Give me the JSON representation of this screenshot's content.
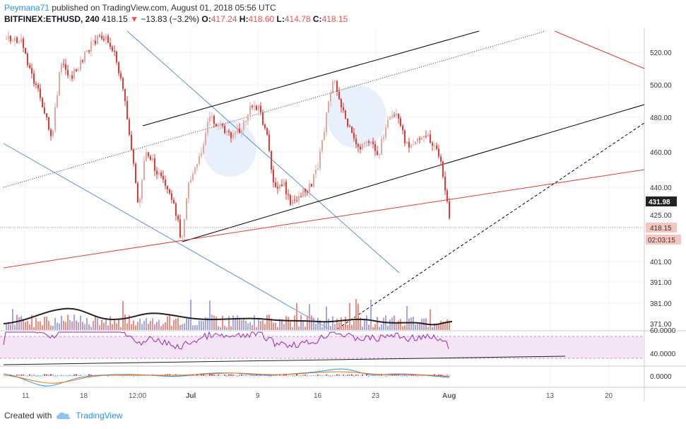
{
  "header": {
    "author": "Peymana71",
    "published_text": " published on TradingView.com, August 01, 2018 05:56 UTC",
    "symbol": "BITFINEX:ETHUSD, 240",
    "price": "418.15",
    "arrow": "▼",
    "change": "−13.83 (−3.2%)",
    "open_label": "O:",
    "open": "417.24",
    "high_label": "H:",
    "high": "418.60",
    "low_label": "L:",
    "low": "414.78",
    "close_label": "C:",
    "close": "418.15"
  },
  "price_axis": {
    "labels": [
      "520.00",
      "500.00",
      "480.00",
      "460.00",
      "440.00",
      "425.00",
      "401.00",
      "391.00",
      "381.00",
      "371.00"
    ],
    "marker_431": "431.98",
    "marker_last": "418.15",
    "marker_timer": "02:03:15"
  },
  "rsi_axis": {
    "labels": [
      "60.0000",
      "40.0000"
    ]
  },
  "macd_axis": {
    "labels": [
      "0.0000"
    ]
  },
  "time_axis": {
    "labels": [
      "11",
      "18",
      "12:00",
      "Jul",
      "9",
      "16",
      "23",
      "Aug",
      "13",
      "20"
    ]
  },
  "footer": {
    "created_with": "Created with",
    "brand": "TradingView"
  },
  "colors": {
    "up": "#e3a8a2",
    "down": "#e53935",
    "vol_up": "#a5a6f0",
    "vol_down": "#f28b82",
    "rsi_fill": "#f3e5f5",
    "rsi_line": "#9c27b0",
    "accent": "#2196f3"
  }
}
